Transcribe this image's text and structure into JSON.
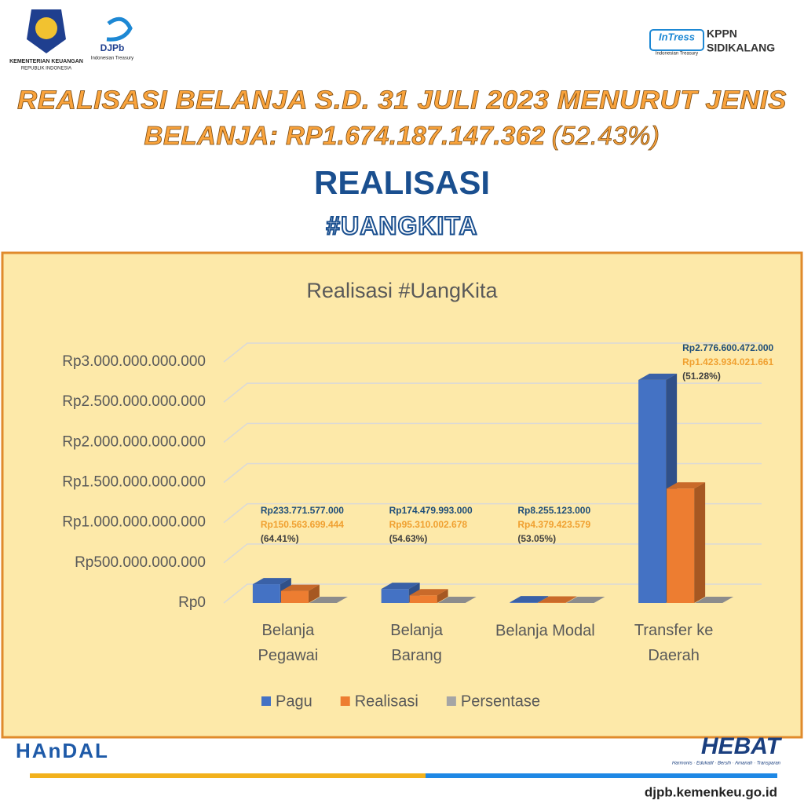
{
  "header": {
    "org_left": "KEMENTERIAN KEUANGAN",
    "org_left_sub": "REPUBLIK INDONESIA",
    "djpb": "DJPb",
    "djpb_sub": "Indonesian Treasury",
    "intress": "InTress",
    "intress_sub": "Indonesian Treasury",
    "kppn": "KPPN",
    "kppn_city": "SIDIKALANG"
  },
  "headline": {
    "line1": "REALISASI BELANJA S.D. 31 JULI 2023 MENURUT JENIS",
    "line2": "BELANJA: RP1.674.187.147.362",
    "line2_pct": "(52.43%)",
    "subtitle": "REALISASI",
    "hashtag": "#UANGKITA"
  },
  "chart_data": {
    "type": "bar3d",
    "title": "Realisasi #UangKita",
    "categories": [
      "Belanja Pegawai",
      "Belanja Barang",
      "Belanja Modal",
      "Transfer ke Daerah"
    ],
    "series": [
      {
        "name": "Pagu",
        "color": "#4472c4",
        "values": [
          233771577000,
          174479993000,
          8255123000,
          2776600472000
        ],
        "value_labels": [
          "Rp233.771.577.000",
          "Rp174.479.993.000",
          "Rp8.255.123.000",
          "Rp2.776.600.472.000"
        ],
        "label_color": "#1f4e79"
      },
      {
        "name": "Realisasi",
        "color": "#ed7d31",
        "values": [
          150563699444,
          95310002678,
          4379423579,
          1423934021661
        ],
        "value_labels": [
          "Rp150.563.699.444",
          "Rp95.310.002.678",
          "Rp4.379.423.579",
          "Rp1.423.934.021.661"
        ],
        "label_color": "#f0a030"
      },
      {
        "name": "Persentase",
        "color": "#a5a5a5",
        "values": [
          64.41,
          54.63,
          53.05,
          51.28
        ],
        "value_labels": [
          "(64.41%)",
          "(54.63%)",
          "(53.05%)",
          "(51.28%)"
        ],
        "label_color": "#404040"
      }
    ],
    "ylim": [
      0,
      3000000000000
    ],
    "yticks": [
      {
        "value": 0,
        "label": "Rp0"
      },
      {
        "value": 500000000000,
        "label": "Rp500.000.000.000"
      },
      {
        "value": 1000000000000,
        "label": "Rp1.000.000.000.000"
      },
      {
        "value": 1500000000000,
        "label": "Rp1.500.000.000.000"
      },
      {
        "value": 2000000000000,
        "label": "Rp2.000.000.000.000"
      },
      {
        "value": 2500000000000,
        "label": "Rp2.500.000.000.000"
      },
      {
        "value": 3000000000000,
        "label": "Rp3.000.000.000.000"
      }
    ],
    "grid": true,
    "legend": "bottom"
  },
  "footer": {
    "handal": "HAnDAL",
    "hebat": "HEBAT",
    "hebat_sub": "Harmonis · Edukatif · Bersih · Amanah · Transparan",
    "url": "djpb.kemenkeu.go.id"
  }
}
